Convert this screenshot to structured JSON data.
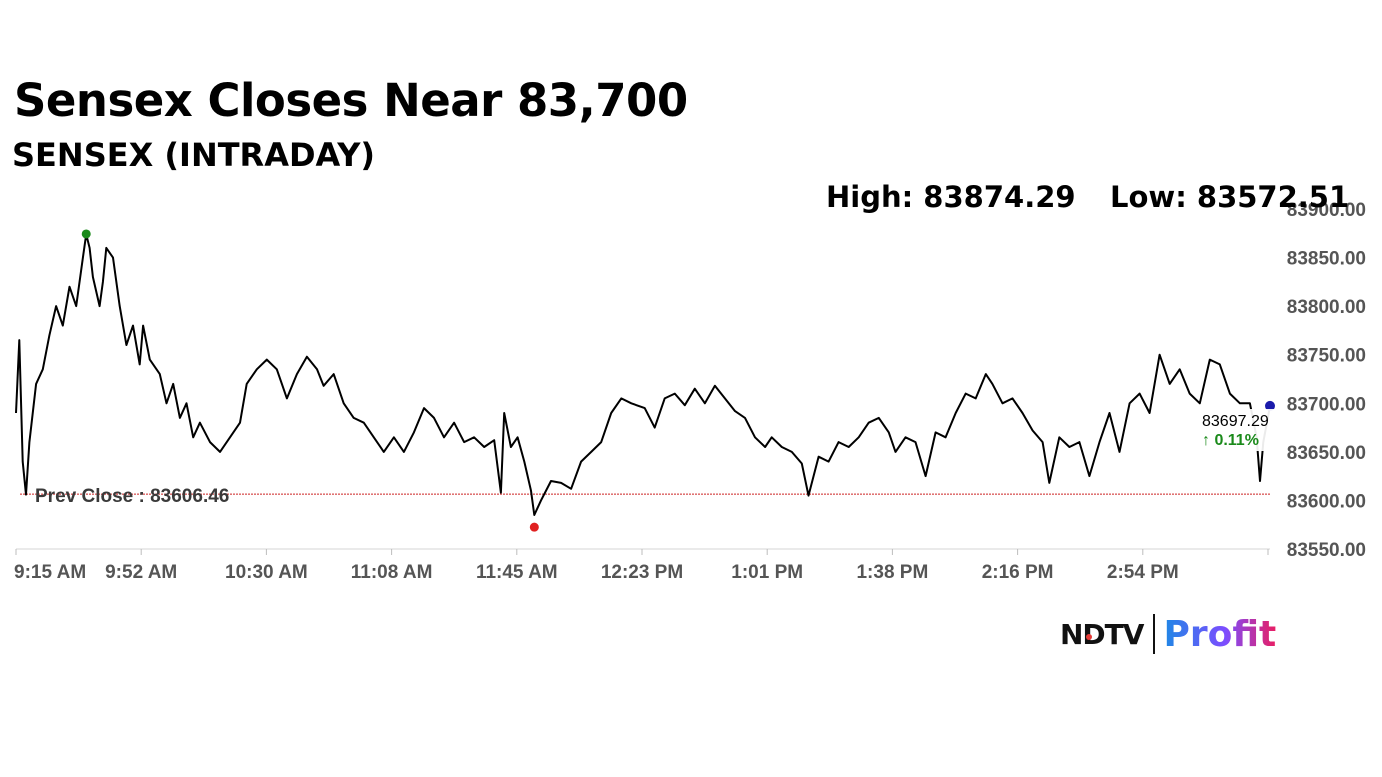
{
  "header": {
    "headline": "Sensex Closes Near 83,700",
    "subheadline": "SENSEX (INTRADAY)",
    "high_text": "High: 83874.29",
    "low_text": "Low: 83572.51"
  },
  "logo": {
    "ndtv": "NDTV",
    "profit": "Profit"
  },
  "colors": {
    "line": "#000000",
    "prev_close": "#cc2222",
    "high_marker": "#1a8a1a",
    "low_marker": "#e02020",
    "last_marker": "#1a1aaa",
    "change_up": "#1a8a1a"
  },
  "chart_data": {
    "type": "line",
    "title": "SENSEX (INTRADAY)",
    "x_tick_labels": [
      "9:15 AM",
      "9:52 AM",
      "10:30 AM",
      "11:08 AM",
      "11:45 AM",
      "12:23 PM",
      "1:01 PM",
      "1:38 PM",
      "2:16 PM",
      "2:54 PM"
    ],
    "y_ticks": [
      83550,
      83600,
      83650,
      83700,
      83750,
      83800,
      83850,
      83900
    ],
    "y_tick_labels": [
      "83550.00",
      "83600.00",
      "83650.00",
      "83700.00",
      "83750.00",
      "83800.00",
      "83850.00",
      "83900.00"
    ],
    "ylim": [
      83550,
      83900
    ],
    "xlim": [
      "9:15",
      "15:30"
    ],
    "grid": false,
    "prev_close": 83606.46,
    "prev_close_label": "Prev Close : 83606.46",
    "high": {
      "time": "9:36",
      "value": 83874.29
    },
    "low": {
      "time": "11:50",
      "value": 83572.51
    },
    "last": {
      "time": "15:30",
      "value": 83697.29,
      "label": "83697.29",
      "change_label": "↑ 0.11%"
    },
    "series": [
      {
        "points": [
          [
            "9:15",
            83690
          ],
          [
            "9:16",
            83765
          ],
          [
            "9:17",
            83640
          ],
          [
            "9:18",
            83606
          ],
          [
            "9:19",
            83660
          ],
          [
            "9:21",
            83720
          ],
          [
            "9:23",
            83735
          ],
          [
            "9:25",
            83770
          ],
          [
            "9:27",
            83800
          ],
          [
            "9:29",
            83780
          ],
          [
            "9:31",
            83820
          ],
          [
            "9:33",
            83800
          ],
          [
            "9:35",
            83850
          ],
          [
            "9:36",
            83874
          ],
          [
            "9:37",
            83860
          ],
          [
            "9:38",
            83830
          ],
          [
            "9:40",
            83800
          ],
          [
            "9:41",
            83825
          ],
          [
            "9:42",
            83860
          ],
          [
            "9:44",
            83850
          ],
          [
            "9:46",
            83800
          ],
          [
            "9:48",
            83760
          ],
          [
            "9:50",
            83780
          ],
          [
            "9:52",
            83740
          ],
          [
            "9:53",
            83780
          ],
          [
            "9:55",
            83745
          ],
          [
            "9:58",
            83730
          ],
          [
            "10:00",
            83700
          ],
          [
            "10:02",
            83720
          ],
          [
            "10:04",
            83685
          ],
          [
            "10:06",
            83700
          ],
          [
            "10:08",
            83665
          ],
          [
            "10:10",
            83680
          ],
          [
            "10:13",
            83660
          ],
          [
            "10:16",
            83650
          ],
          [
            "10:19",
            83665
          ],
          [
            "10:22",
            83680
          ],
          [
            "10:24",
            83720
          ],
          [
            "10:27",
            83735
          ],
          [
            "10:30",
            83745
          ],
          [
            "10:33",
            83735
          ],
          [
            "10:36",
            83705
          ],
          [
            "10:39",
            83730
          ],
          [
            "10:42",
            83748
          ],
          [
            "10:45",
            83735
          ],
          [
            "10:47",
            83718
          ],
          [
            "10:50",
            83730
          ],
          [
            "10:53",
            83700
          ],
          [
            "10:56",
            83685
          ],
          [
            "10:59",
            83680
          ],
          [
            "11:02",
            83665
          ],
          [
            "11:05",
            83650
          ],
          [
            "11:08",
            83665
          ],
          [
            "11:11",
            83650
          ],
          [
            "11:14",
            83670
          ],
          [
            "11:17",
            83695
          ],
          [
            "11:20",
            83685
          ],
          [
            "11:23",
            83665
          ],
          [
            "11:26",
            83680
          ],
          [
            "11:29",
            83660
          ],
          [
            "11:32",
            83665
          ],
          [
            "11:35",
            83655
          ],
          [
            "11:38",
            83662
          ],
          [
            "11:40",
            83608
          ],
          [
            "11:41",
            83690
          ],
          [
            "11:43",
            83655
          ],
          [
            "11:45",
            83665
          ],
          [
            "11:47",
            83640
          ],
          [
            "11:49",
            83610
          ],
          [
            "11:50",
            83585
          ],
          [
            "11:52",
            83600
          ],
          [
            "11:55",
            83620
          ],
          [
            "11:58",
            83618
          ],
          [
            "12:01",
            83612
          ],
          [
            "12:04",
            83640
          ],
          [
            "12:07",
            83650
          ],
          [
            "12:10",
            83660
          ],
          [
            "12:13",
            83690
          ],
          [
            "12:16",
            83705
          ],
          [
            "12:19",
            83700
          ],
          [
            "12:23",
            83695
          ],
          [
            "12:26",
            83675
          ],
          [
            "12:29",
            83705
          ],
          [
            "12:32",
            83710
          ],
          [
            "12:35",
            83698
          ],
          [
            "12:38",
            83715
          ],
          [
            "12:41",
            83700
          ],
          [
            "12:44",
            83718
          ],
          [
            "12:47",
            83705
          ],
          [
            "12:50",
            83692
          ],
          [
            "12:53",
            83685
          ],
          [
            "12:56",
            83665
          ],
          [
            "12:59",
            83655
          ],
          [
            "13:01",
            83665
          ],
          [
            "13:04",
            83655
          ],
          [
            "13:07",
            83650
          ],
          [
            "13:10",
            83638
          ],
          [
            "13:12",
            83605
          ],
          [
            "13:15",
            83645
          ],
          [
            "13:18",
            83640
          ],
          [
            "13:21",
            83660
          ],
          [
            "13:24",
            83655
          ],
          [
            "13:27",
            83665
          ],
          [
            "13:30",
            83680
          ],
          [
            "13:33",
            83685
          ],
          [
            "13:36",
            83670
          ],
          [
            "13:38",
            83650
          ],
          [
            "13:41",
            83665
          ],
          [
            "13:44",
            83660
          ],
          [
            "13:47",
            83625
          ],
          [
            "13:50",
            83670
          ],
          [
            "13:53",
            83665
          ],
          [
            "13:56",
            83690
          ],
          [
            "13:59",
            83710
          ],
          [
            "14:02",
            83705
          ],
          [
            "14:05",
            83730
          ],
          [
            "14:07",
            83720
          ],
          [
            "14:10",
            83700
          ],
          [
            "14:13",
            83705
          ],
          [
            "14:16",
            83690
          ],
          [
            "14:19",
            83672
          ],
          [
            "14:22",
            83660
          ],
          [
            "14:24",
            83618
          ],
          [
            "14:27",
            83665
          ],
          [
            "14:30",
            83655
          ],
          [
            "14:33",
            83660
          ],
          [
            "14:36",
            83625
          ],
          [
            "14:39",
            83660
          ],
          [
            "14:42",
            83690
          ],
          [
            "14:45",
            83650
          ],
          [
            "14:48",
            83700
          ],
          [
            "14:51",
            83710
          ],
          [
            "14:54",
            83690
          ],
          [
            "14:57",
            83750
          ],
          [
            "15:00",
            83720
          ],
          [
            "15:03",
            83735
          ],
          [
            "15:06",
            83710
          ],
          [
            "15:09",
            83700
          ],
          [
            "15:12",
            83745
          ],
          [
            "15:15",
            83740
          ],
          [
            "15:18",
            83710
          ],
          [
            "15:21",
            83700
          ],
          [
            "15:24",
            83700
          ],
          [
            "15:26",
            83665
          ],
          [
            "15:27",
            83620
          ],
          [
            "15:28",
            83660
          ],
          [
            "15:30",
            83697
          ]
        ]
      }
    ]
  }
}
